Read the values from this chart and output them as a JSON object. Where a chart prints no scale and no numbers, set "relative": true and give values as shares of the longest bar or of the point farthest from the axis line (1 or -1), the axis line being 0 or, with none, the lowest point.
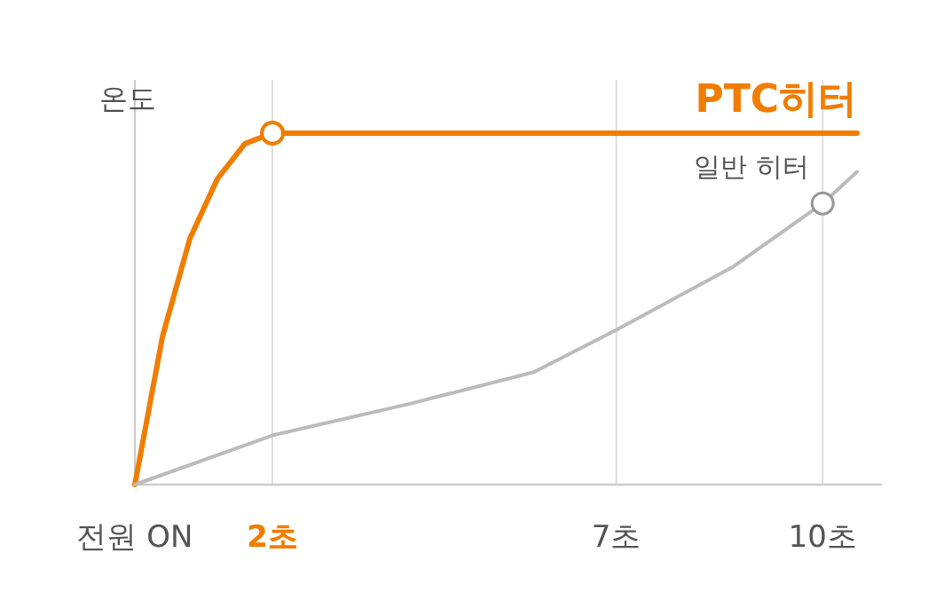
{
  "chart_data": {
    "type": "line",
    "relative": true,
    "ylabel": "온도",
    "legend": false,
    "grid": false,
    "xlim": [
      0,
      10.5
    ],
    "xticks": [
      {
        "value": 0,
        "label": "전원 ON"
      },
      {
        "value": 2,
        "label": "2초"
      },
      {
        "value": 7,
        "label": "7초"
      },
      {
        "value": 10,
        "label": "10초"
      }
    ],
    "ref_lines": [
      {
        "axis": "x",
        "value": 2,
        "color": "#dddddd"
      },
      {
        "axis": "x",
        "value": 7,
        "color": "#dddddd"
      },
      {
        "axis": "x",
        "value": 10,
        "color": "#dddddd"
      }
    ],
    "series": [
      {
        "name": "PTC히터",
        "color": "#f07d00",
        "x": [
          0,
          0.4,
          0.8,
          1.2,
          1.6,
          2,
          10.5
        ],
        "values": [
          0,
          0.42,
          0.7,
          0.87,
          0.97,
          1,
          1
        ]
      },
      {
        "name": "일반 히터",
        "color": "#bbbbbb",
        "x": [
          0,
          2,
          4,
          5.8,
          7,
          8.7,
          10,
          10.5
        ],
        "values": [
          0,
          0.14,
          0.23,
          0.32,
          0.44,
          0.62,
          0.8,
          0.89
        ]
      },
      {
        "type": "scatter",
        "marker": "circle",
        "x": [
          2,
          10
        ],
        "values": [
          1,
          0.8
        ],
        "colors": [
          "#f07d00",
          "#999999"
        ]
      }
    ]
  }
}
